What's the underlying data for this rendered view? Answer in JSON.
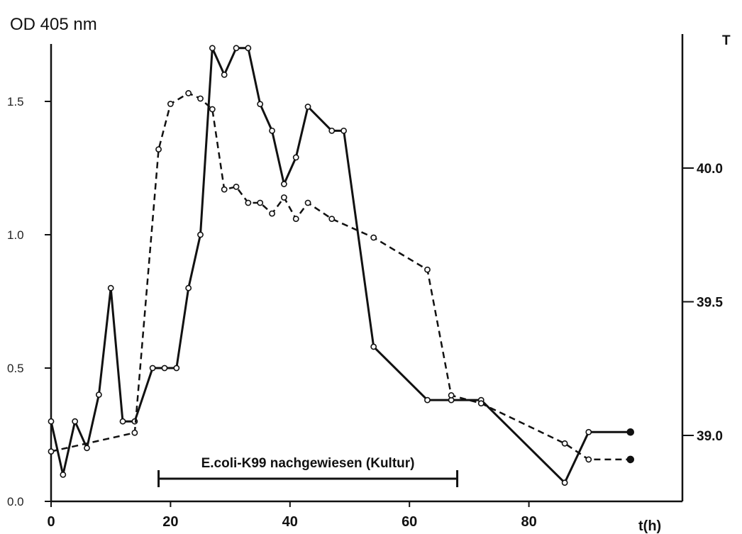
{
  "chart_data": {
    "type": "line",
    "y_left_label": "OD 405 nm",
    "y_right_label": "T",
    "x_label": "t(h)",
    "x_ticks": [
      0,
      20,
      40,
      60,
      80
    ],
    "x_tick_labels": [
      "0",
      "20",
      "40",
      "60",
      "80"
    ],
    "xlim": [
      0,
      97
    ],
    "y_left_ticks": [
      0.0,
      0.5,
      1.0,
      1.5
    ],
    "y_left_tick_labels": [
      "0.0",
      "0.5",
      "1.0",
      "1.5"
    ],
    "ylim_left": [
      0,
      1.7
    ],
    "y_right_ticks": [
      39.0,
      39.5,
      40.0
    ],
    "y_right_tick_labels": [
      "39.0",
      "39.5",
      "40.0"
    ],
    "ylim_right": [
      38.75,
      40.7
    ],
    "grid": false,
    "legend": "none",
    "series": [
      {
        "style": "solid",
        "axis": "left",
        "x": [
          0,
          2,
          4,
          6,
          8,
          10,
          12,
          14,
          17,
          19,
          21,
          23,
          25,
          27,
          29,
          31,
          33,
          35,
          37,
          39,
          41,
          43,
          47,
          49,
          54,
          63,
          67,
          72,
          86,
          90,
          97
        ],
        "y": [
          0.3,
          0.1,
          0.3,
          0.2,
          0.4,
          0.8,
          0.3,
          0.3,
          0.5,
          0.5,
          0.5,
          0.8,
          1.0,
          1.7,
          1.6,
          1.7,
          1.7,
          1.49,
          1.39,
          1.19,
          1.29,
          1.48,
          1.39,
          1.39,
          0.58,
          0.38,
          0.38,
          0.38,
          0.07,
          0.26,
          0.26
        ]
      },
      {
        "style": "dashed",
        "axis": "right",
        "x": [
          0,
          14,
          18,
          20,
          23,
          25,
          27,
          29,
          31,
          33,
          35,
          37,
          39,
          41,
          43,
          47,
          54,
          63,
          67,
          72,
          86,
          90,
          97
        ],
        "t": [
          38.94,
          39.01,
          40.07,
          40.24,
          40.28,
          40.26,
          40.22,
          39.92,
          39.93,
          39.87,
          39.87,
          39.83,
          39.89,
          39.81,
          39.87,
          39.81,
          39.74,
          39.62,
          39.15,
          39.12,
          38.97,
          38.91,
          38.91
        ]
      }
    ],
    "annotation": {
      "text": "E.coli-K99 nachgewiesen (Kultur)",
      "x_range": [
        18,
        68
      ]
    }
  }
}
